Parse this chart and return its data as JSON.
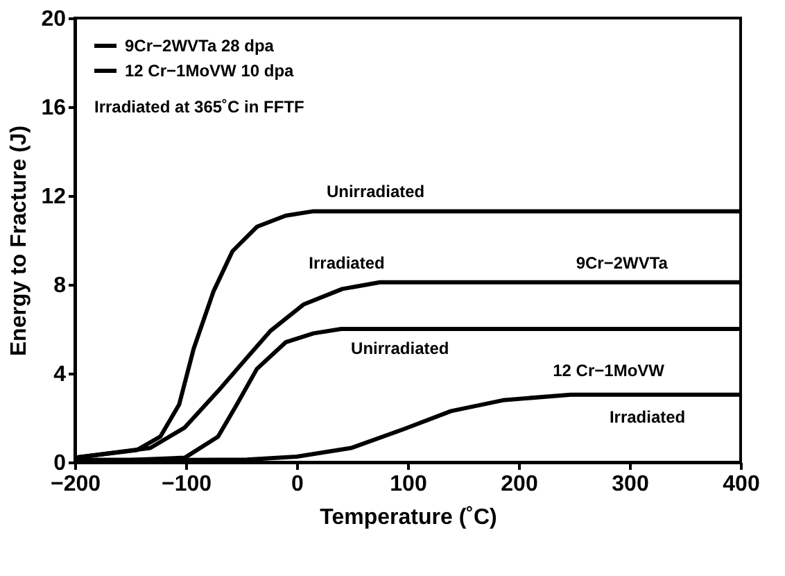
{
  "chart_data": {
    "type": "line",
    "xlabel": "Temperature (˚C)",
    "ylabel": "Energy to Fracture (J)",
    "xlim": [
      -200,
      400
    ],
    "ylim": [
      0,
      20
    ],
    "xticks": [
      -200,
      -100,
      0,
      100,
      200,
      300,
      400
    ],
    "yticks": [
      0,
      4,
      8,
      12,
      16,
      20
    ],
    "grid": false,
    "legend": "top left",
    "marker": "none",
    "line_style": "solid",
    "series": [
      {
        "name": "9Cr−2WVTa  28 dpa",
        "color": "#000000",
        "x": [
          -200,
          -144,
          -123,
          -106,
          -93,
          -75,
          -58,
          -36,
          -10,
          15,
          100,
          200,
          300,
          400
        ],
        "values": [
          0.2,
          0.55,
          1.15,
          2.6,
          5.1,
          7.7,
          9.5,
          10.6,
          11.1,
          11.3,
          11.3,
          11.3,
          11.3,
          11.3
        ]
      },
      {
        "color": "#000000",
        "x": [
          -200,
          -132,
          -101,
          -71,
          -45,
          -24,
          6,
          41,
          75,
          100,
          200,
          300,
          400
        ],
        "values": [
          0.2,
          0.64,
          1.56,
          3.2,
          4.7,
          5.9,
          7.1,
          7.8,
          8.1,
          8.1,
          8.1,
          8.1,
          8.1
        ]
      },
      {
        "name": "12 Cr−1MoVW  10 dpa",
        "color": "#000000",
        "x": [
          -200,
          -150,
          -101,
          -71,
          -54,
          -36,
          -10,
          15,
          40,
          100,
          200,
          300,
          400
        ],
        "values": [
          0.1,
          0.1,
          0.2,
          1.15,
          2.6,
          4.2,
          5.4,
          5.8,
          6.0,
          6.0,
          6.0,
          6.0,
          6.0
        ]
      },
      {
        "color": "#000000",
        "x": [
          -200,
          -100,
          -45,
          0,
          49,
          97,
          139,
          187,
          247,
          300,
          400
        ],
        "values": [
          0.1,
          0.1,
          0.12,
          0.25,
          0.64,
          1.5,
          2.3,
          2.8,
          3.04,
          3.04,
          3.04
        ]
      }
    ],
    "annotations": [
      "Irradiated at 365˚C in FFTF",
      {
        "text": "Unirradiated",
        "x": 71,
        "y": 11.3
      },
      {
        "text": "Irradiated",
        "x": 45,
        "y": 8.1
      },
      {
        "text": "9Cr−2WVTa",
        "x": 293,
        "y": 8.1
      },
      {
        "text": "Unirradiated",
        "x": 93,
        "y": 6.0
      },
      {
        "text": "12 Cr−1MoVW",
        "x": 281,
        "y": 6.0
      },
      {
        "text": "Irradiated",
        "x": 316,
        "y": 3.04
      }
    ]
  }
}
